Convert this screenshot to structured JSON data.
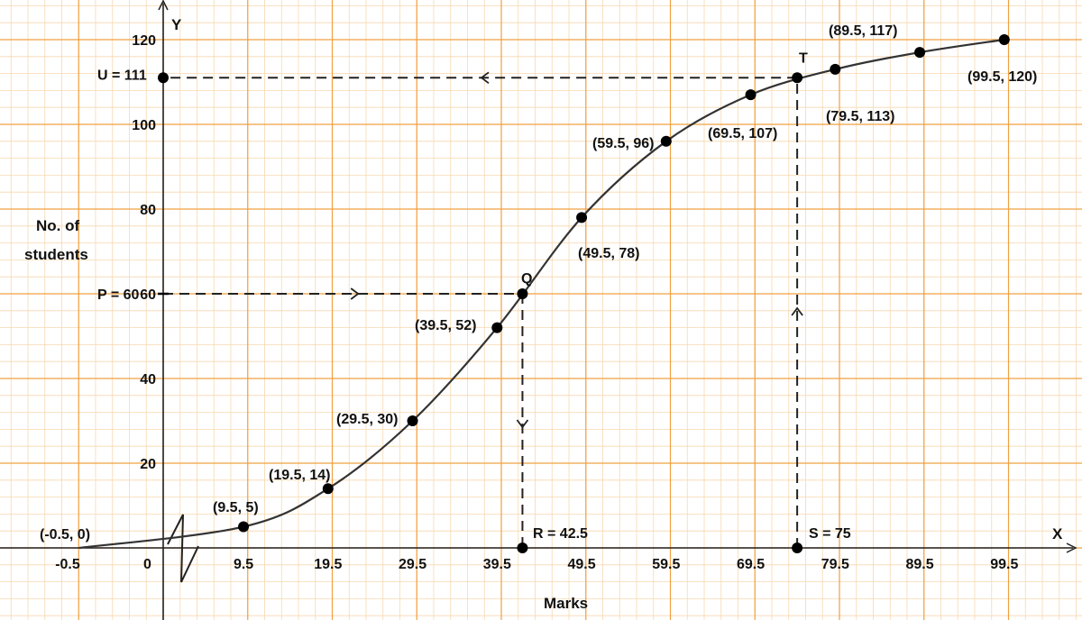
{
  "chart_data": {
    "type": "line",
    "xlabel": "Marks",
    "ylabel_line1": "No. of",
    "ylabel_line2": "students",
    "x_axis_letter": "X",
    "y_axis_letter": "Y",
    "origin_label": "0",
    "xlim": [
      -0.5,
      104.5
    ],
    "ylim": [
      0,
      120
    ],
    "grid": true,
    "x_ticks": [
      -0.5,
      9.5,
      19.5,
      29.5,
      39.5,
      49.5,
      59.5,
      69.5,
      79.5,
      89.5,
      99.5
    ],
    "x_tick_labels": [
      "-0.5",
      "9.5",
      "19.5",
      "29.5",
      "39.5",
      "49.5",
      "59.5",
      "69.5",
      "79.5",
      "89.5",
      "99.5"
    ],
    "y_ticks": [
      20,
      40,
      60,
      80,
      100,
      120
    ],
    "y_tick_labels": [
      "20",
      "40",
      "60",
      "80",
      "100",
      "120"
    ],
    "series": [
      {
        "points": [
          {
            "x": -0.5,
            "y": 0,
            "label": "(-0.5, 0)"
          },
          {
            "x": 9.5,
            "y": 5,
            "label": "(9.5, 5)"
          },
          {
            "x": 19.5,
            "y": 14,
            "label": "(19.5, 14)"
          },
          {
            "x": 29.5,
            "y": 30,
            "label": "(29.5, 30)"
          },
          {
            "x": 39.5,
            "y": 52,
            "label": "(39.5, 52)"
          },
          {
            "x": 49.5,
            "y": 78,
            "label": "(49.5, 78)"
          },
          {
            "x": 59.5,
            "y": 96,
            "label": "(59.5, 96)"
          },
          {
            "x": 69.5,
            "y": 107,
            "label": "(69.5, 107)"
          },
          {
            "x": 79.5,
            "y": 113,
            "label": "(79.5, 113)"
          },
          {
            "x": 89.5,
            "y": 117,
            "label": "(89.5, 117)"
          },
          {
            "x": 99.5,
            "y": 120,
            "label": "(99.5, 120)"
          }
        ]
      }
    ],
    "annotations": {
      "P": {
        "y": 60,
        "text": "P = 60"
      },
      "Q": {
        "x": 42.5,
        "y": 60,
        "text": "Q"
      },
      "R": {
        "x": 42.5,
        "y": 0,
        "text": "R = 42.5"
      },
      "U": {
        "y": 111,
        "text": "U = 111"
      },
      "T": {
        "x": 75,
        "y": 111,
        "text": "T"
      },
      "S": {
        "x": 75,
        "y": 0,
        "text": "S = 75"
      }
    },
    "colors": {
      "major_grid": "#f0a040",
      "minor_grid": "#f8d8b0",
      "curve": "#333333",
      "point": "#000000"
    }
  }
}
